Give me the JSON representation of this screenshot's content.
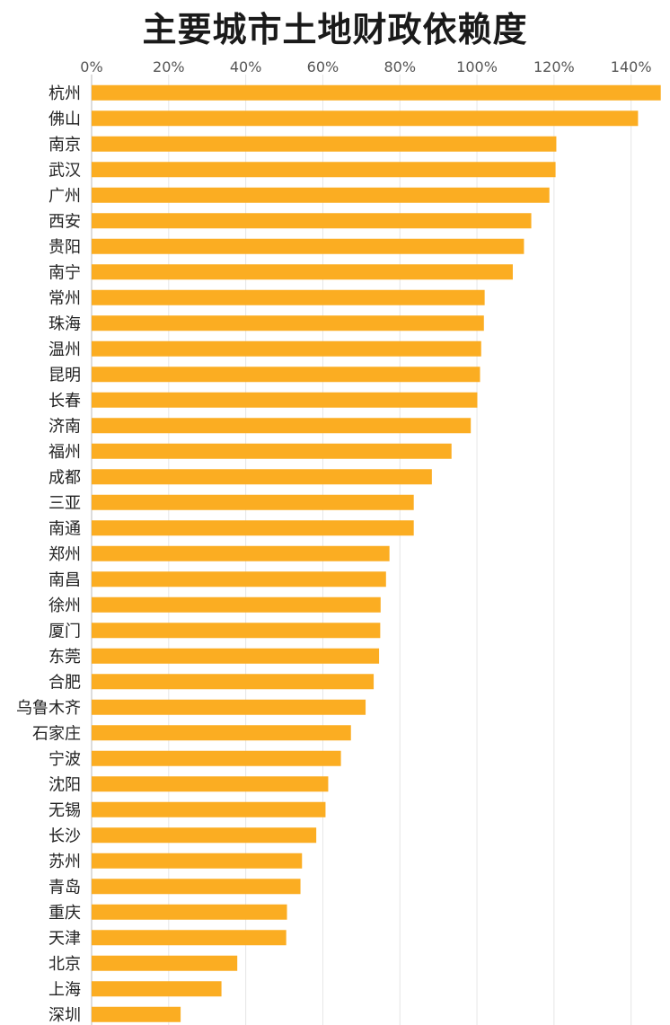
{
  "chart_data": {
    "type": "bar",
    "orientation": "horizontal",
    "title": "主要城市土地财政依赖度",
    "xlabel": "",
    "ylabel": "",
    "x_ticks": [
      "0%",
      "20%",
      "40%",
      "60%",
      "80%",
      "100%",
      "120%",
      "140%"
    ],
    "xlim": [
      0,
      148
    ],
    "grid": true,
    "bar_color": "#FBAD22",
    "categories": [
      "杭州",
      "佛山",
      "南京",
      "武汉",
      "广州",
      "西安",
      "贵阳",
      "南宁",
      "常州",
      "珠海",
      "温州",
      "昆明",
      "长春",
      "济南",
      "福州",
      "成都",
      "三亚",
      "南通",
      "郑州",
      "南昌",
      "徐州",
      "厦门",
      "东莞",
      "合肥",
      "乌鲁木齐",
      "石家庄",
      "宁波",
      "沈阳",
      "无锡",
      "长沙",
      "苏州",
      "青岛",
      "重庆",
      "天津",
      "北京",
      "上海",
      "深圳"
    ],
    "values": [
      147.7,
      141.8,
      120.6,
      120.4,
      118.8,
      114.1,
      112.2,
      109.3,
      102.0,
      101.8,
      101.1,
      100.8,
      100.1,
      98.4,
      93.4,
      88.3,
      83.6,
      83.6,
      77.3,
      76.4,
      75.0,
      74.9,
      74.6,
      73.2,
      71.1,
      67.3,
      64.7,
      61.4,
      60.7,
      58.3,
      54.6,
      54.2,
      50.7,
      50.5,
      37.8,
      33.7,
      23.1
    ]
  }
}
